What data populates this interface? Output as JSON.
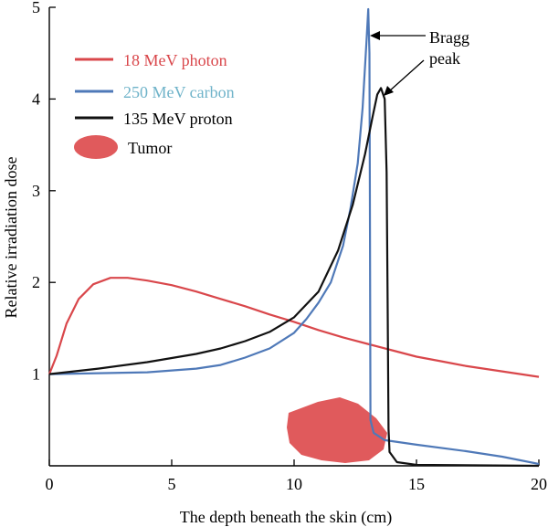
{
  "chart_data": {
    "type": "line",
    "xlabel": "The depth beneath the skin (cm)",
    "ylabel": "Relative irradiation dose",
    "xlim": [
      0,
      20
    ],
    "ylim": [
      0,
      5
    ],
    "x_ticks": [
      "0",
      "5",
      "10",
      "15",
      "20"
    ],
    "y_ticks": [
      "1",
      "2",
      "3",
      "4",
      "5"
    ],
    "legend_position": "top-left",
    "series": [
      {
        "name": "18 MeV photon",
        "color": "#d9474b",
        "points": [
          [
            0,
            1.0
          ],
          [
            0.3,
            1.2
          ],
          [
            0.7,
            1.55
          ],
          [
            1.2,
            1.82
          ],
          [
            1.8,
            1.98
          ],
          [
            2.5,
            2.05
          ],
          [
            3.2,
            2.05
          ],
          [
            4,
            2.02
          ],
          [
            5,
            1.97
          ],
          [
            6,
            1.9
          ],
          [
            7,
            1.82
          ],
          [
            8,
            1.74
          ],
          [
            9,
            1.65
          ],
          [
            10,
            1.57
          ],
          [
            11,
            1.48
          ],
          [
            12,
            1.4
          ],
          [
            13,
            1.33
          ],
          [
            14,
            1.26
          ],
          [
            15,
            1.19
          ],
          [
            16,
            1.14
          ],
          [
            17,
            1.09
          ],
          [
            18,
            1.05
          ],
          [
            19,
            1.01
          ],
          [
            20,
            0.97
          ]
        ]
      },
      {
        "name": "250 MeV carbon",
        "color": "#4f79b8",
        "points": [
          [
            0,
            1.0
          ],
          [
            2,
            1.01
          ],
          [
            4,
            1.02
          ],
          [
            6,
            1.06
          ],
          [
            7,
            1.1
          ],
          [
            8,
            1.18
          ],
          [
            9,
            1.28
          ],
          [
            10,
            1.45
          ],
          [
            10.5,
            1.6
          ],
          [
            11,
            1.78
          ],
          [
            11.5,
            2.0
          ],
          [
            12,
            2.4
          ],
          [
            12.3,
            2.8
          ],
          [
            12.6,
            3.3
          ],
          [
            12.8,
            3.9
          ],
          [
            12.95,
            4.6
          ],
          [
            13.03,
            4.98
          ],
          [
            13.08,
            4.5
          ],
          [
            13.1,
            2.5
          ],
          [
            13.12,
            0.5
          ],
          [
            13.25,
            0.36
          ],
          [
            13.7,
            0.28
          ],
          [
            15,
            0.23
          ],
          [
            17,
            0.16
          ],
          [
            18.5,
            0.1
          ],
          [
            20,
            0.02
          ]
        ]
      },
      {
        "name": "135 MeV proton",
        "color": "#111111",
        "points": [
          [
            0,
            1.0
          ],
          [
            2,
            1.06
          ],
          [
            4,
            1.13
          ],
          [
            6,
            1.22
          ],
          [
            7,
            1.28
          ],
          [
            8,
            1.36
          ],
          [
            9,
            1.46
          ],
          [
            10,
            1.62
          ],
          [
            11,
            1.9
          ],
          [
            11.8,
            2.35
          ],
          [
            12.4,
            2.85
          ],
          [
            12.9,
            3.4
          ],
          [
            13.2,
            3.8
          ],
          [
            13.4,
            4.05
          ],
          [
            13.55,
            4.12
          ],
          [
            13.7,
            4.0
          ],
          [
            13.78,
            3.2
          ],
          [
            13.82,
            1.8
          ],
          [
            13.86,
            0.4
          ],
          [
            13.9,
            0.15
          ],
          [
            14.2,
            0.04
          ],
          [
            15,
            0.01
          ],
          [
            20,
            0.0
          ]
        ]
      }
    ],
    "legend_marker": {
      "label": "Tumor",
      "color": "#e05a5c"
    },
    "annotation": {
      "text_line1": "Bragg",
      "text_line2": "peak"
    }
  }
}
